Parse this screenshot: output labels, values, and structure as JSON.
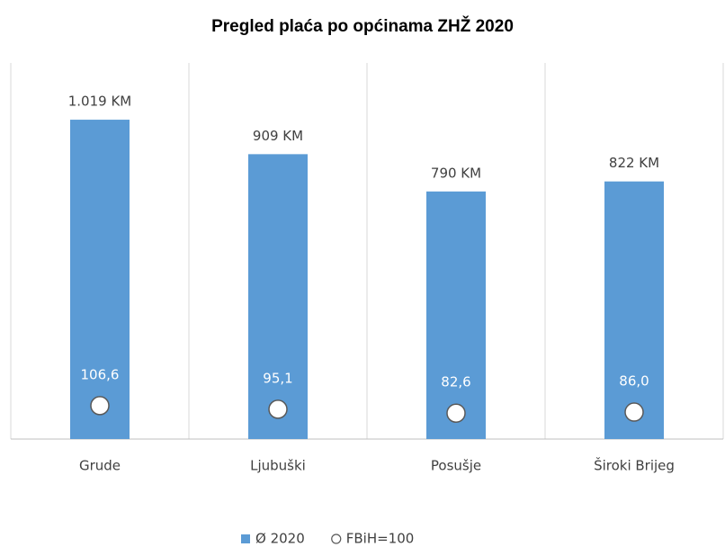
{
  "chart_data": {
    "type": "bar",
    "title": "Pregled plaća po općinama ZHŽ 2020",
    "categories": [
      "Grude",
      "Ljubuški",
      "Posušje",
      "Široki Brijeg"
    ],
    "ylim": [
      0,
      1200
    ],
    "series": [
      {
        "name": "Ø 2020",
        "color": "#5b9bd5",
        "values": [
          1019,
          909,
          790,
          822
        ],
        "value_labels": [
          "1.019 KM",
          "909 KM",
          "790 KM",
          "822 KM"
        ]
      },
      {
        "name": "FBiH=100",
        "color": "#ffffff",
        "marker": "circle",
        "values": [
          106.6,
          95.1,
          82.6,
          86.0
        ],
        "value_labels": [
          "106,6",
          "95,1",
          "82,6",
          "86,0"
        ]
      }
    ],
    "legend": "bottom"
  }
}
